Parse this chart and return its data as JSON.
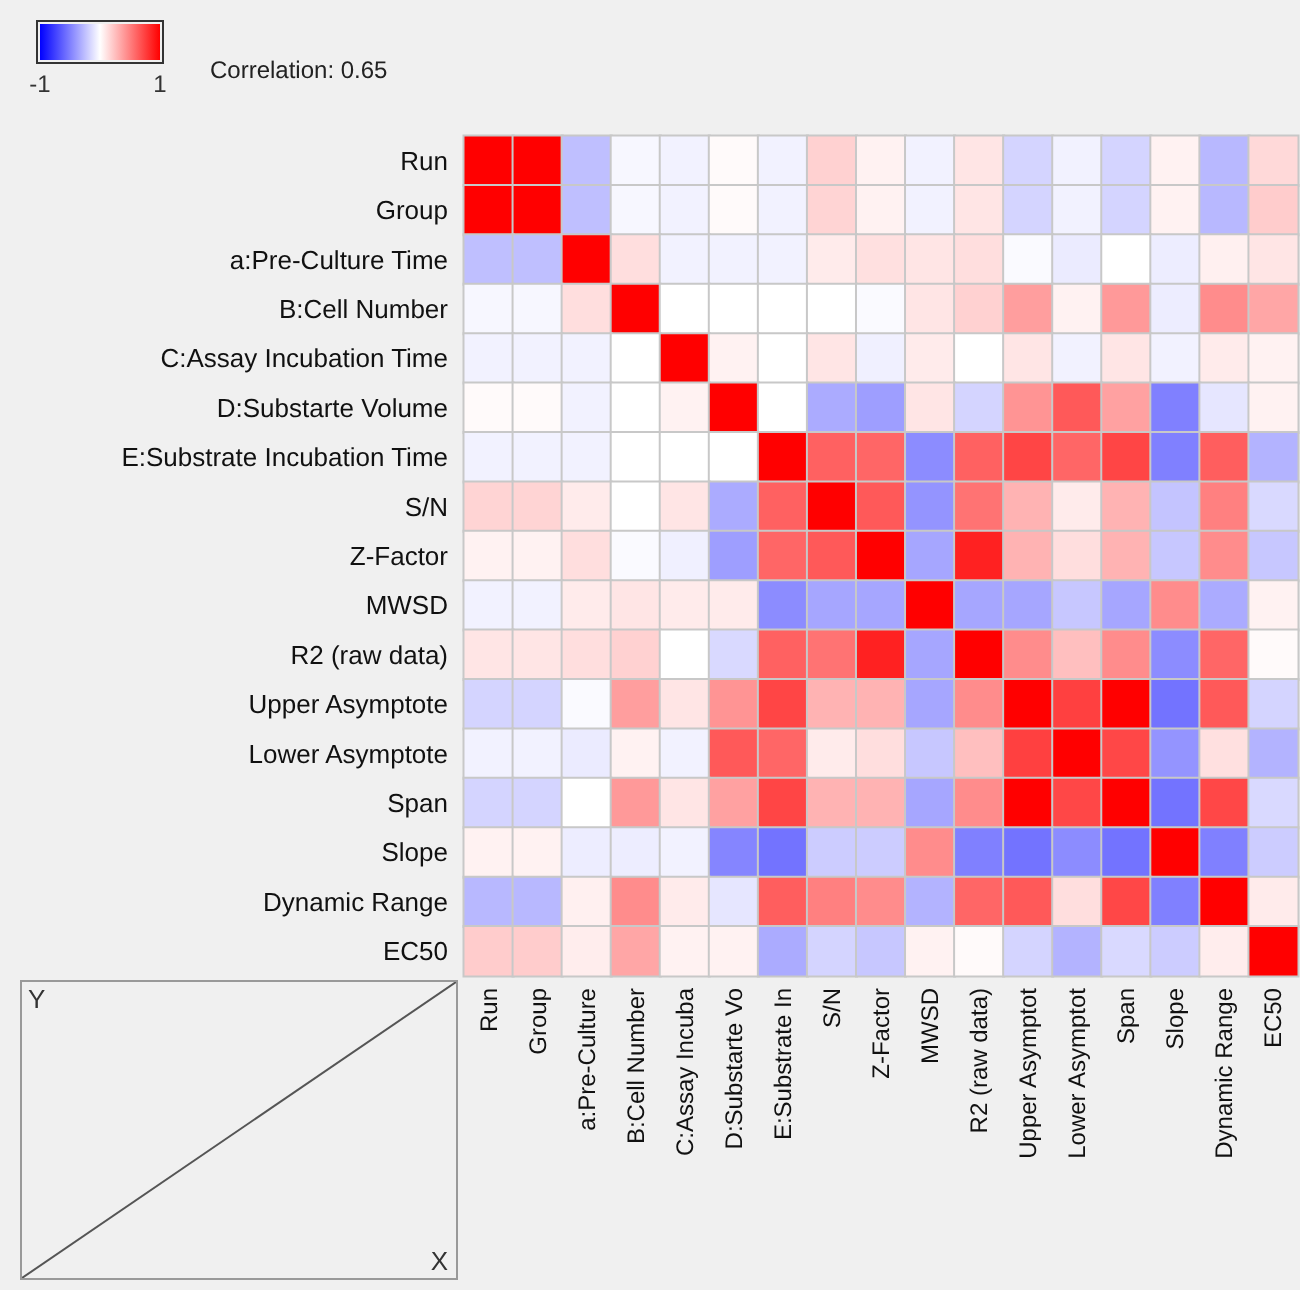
{
  "chart_data": {
    "type": "heatmap",
    "annotations": [
      "Correlation: 0.65",
      "Y",
      "X"
    ],
    "categories": [
      "Run",
      "Group",
      "a:Pre-Culture",
      "B:Cell Number",
      "C:Assay Incuba",
      "D:Substarte Vo",
      "E:Substrate In",
      "S/N",
      "Z-Factor",
      "MWSD",
      "R2 (raw data)",
      "Upper Asymptot",
      "Lower Asymptot",
      "Span",
      "Slope",
      "Dynamic Range",
      "EC50"
    ],
    "y_categories": [
      "Run",
      "Group",
      "a:Pre-Culture Time",
      "B:Cell Number",
      "C:Assay Incubation Time",
      "D:Substarte Volume",
      "E:Substrate Incubation Time",
      "S/N",
      "Z-Factor",
      "MWSD",
      "R2 (raw data)",
      "Upper Asymptote",
      "Lower Asymptote",
      "Span",
      "Slope",
      "Dynamic Range",
      "EC50"
    ],
    "cells": [
      [
        1,
        1,
        -0.25,
        -0.03,
        -0.05,
        0.02,
        -0.05,
        0.18,
        0.05,
        -0.05,
        0.1,
        -0.17,
        -0.05,
        -0.17,
        0.05,
        -0.28,
        0.15
      ],
      [
        1,
        1,
        -0.25,
        -0.03,
        -0.05,
        0.02,
        -0.05,
        0.17,
        0.05,
        -0.05,
        0.1,
        -0.17,
        -0.05,
        -0.17,
        0.05,
        -0.28,
        0.2
      ],
      [
        -0.25,
        -0.25,
        1,
        0.13,
        -0.05,
        -0.05,
        -0.05,
        0.08,
        0.12,
        0.1,
        0.13,
        -0.02,
        -0.08,
        0,
        -0.07,
        0.06,
        0.1
      ],
      [
        -0.03,
        -0.03,
        0.13,
        1,
        0,
        0,
        0,
        0,
        -0.02,
        0.1,
        0.18,
        0.38,
        0.05,
        0.4,
        -0.07,
        0.45,
        0.35
      ],
      [
        -0.05,
        -0.05,
        -0.05,
        0,
        1,
        0.05,
        0,
        0.1,
        -0.06,
        0.08,
        0,
        0.1,
        -0.05,
        0.1,
        -0.05,
        0.08,
        0.05
      ],
      [
        0.02,
        0.02,
        -0.05,
        0,
        0.05,
        1,
        0,
        -0.33,
        -0.38,
        0.1,
        -0.17,
        0.42,
        0.65,
        0.37,
        -0.5,
        -0.1,
        0.05
      ],
      [
        -0.05,
        -0.05,
        -0.05,
        0,
        0,
        0,
        1,
        0.62,
        0.6,
        -0.45,
        0.62,
        0.73,
        0.6,
        0.73,
        -0.5,
        0.63,
        -0.3
      ],
      [
        0.17,
        0.17,
        0.08,
        0,
        0.1,
        -0.33,
        0.62,
        1,
        0.65,
        -0.42,
        0.55,
        0.3,
        0.08,
        0.3,
        -0.23,
        0.5,
        -0.15
      ],
      [
        0.05,
        0.05,
        0.13,
        -0.02,
        -0.06,
        -0.38,
        0.6,
        0.65,
        1,
        -0.35,
        0.87,
        0.3,
        0.13,
        0.3,
        -0.22,
        0.45,
        -0.22
      ],
      [
        -0.05,
        -0.05,
        0.08,
        0.1,
        0.08,
        0.08,
        -0.45,
        -0.35,
        -0.35,
        1,
        -0.35,
        -0.35,
        -0.22,
        -0.35,
        0.45,
        -0.33,
        0.05
      ],
      [
        0.1,
        0.1,
        0.13,
        0.18,
        0,
        -0.15,
        0.62,
        0.55,
        0.87,
        -0.35,
        1,
        0.45,
        0.25,
        0.45,
        -0.45,
        0.6,
        0.02
      ],
      [
        -0.17,
        -0.17,
        -0.02,
        0.38,
        0.1,
        0.42,
        0.73,
        0.3,
        0.3,
        -0.35,
        0.45,
        1,
        0.75,
        1,
        -0.55,
        0.65,
        -0.17
      ],
      [
        -0.05,
        -0.05,
        -0.08,
        0.05,
        -0.05,
        0.65,
        0.6,
        0.08,
        0.13,
        -0.22,
        0.25,
        0.75,
        1,
        0.72,
        -0.42,
        0.12,
        -0.3
      ],
      [
        -0.17,
        -0.17,
        0,
        0.4,
        0.1,
        0.37,
        0.73,
        0.3,
        0.3,
        -0.35,
        0.45,
        1,
        0.72,
        1,
        -0.55,
        0.72,
        -0.15
      ],
      [
        0.05,
        0.05,
        -0.07,
        -0.07,
        -0.05,
        -0.48,
        -0.55,
        -0.2,
        -0.2,
        0.45,
        -0.5,
        -0.55,
        -0.45,
        -0.55,
        1,
        -0.5,
        -0.2
      ],
      [
        -0.28,
        -0.28,
        0.06,
        0.45,
        0.08,
        -0.1,
        0.63,
        0.5,
        0.45,
        -0.3,
        0.6,
        0.65,
        0.13,
        0.72,
        -0.5,
        1,
        0.08
      ],
      [
        0.2,
        0.2,
        0.07,
        0.35,
        0.05,
        0.05,
        -0.33,
        -0.17,
        -0.22,
        0.05,
        0.02,
        -0.17,
        -0.3,
        -0.15,
        -0.2,
        0.07,
        1
      ]
    ],
    "clim": [
      -1,
      1
    ],
    "cticks": [
      -1,
      1
    ]
  }
}
